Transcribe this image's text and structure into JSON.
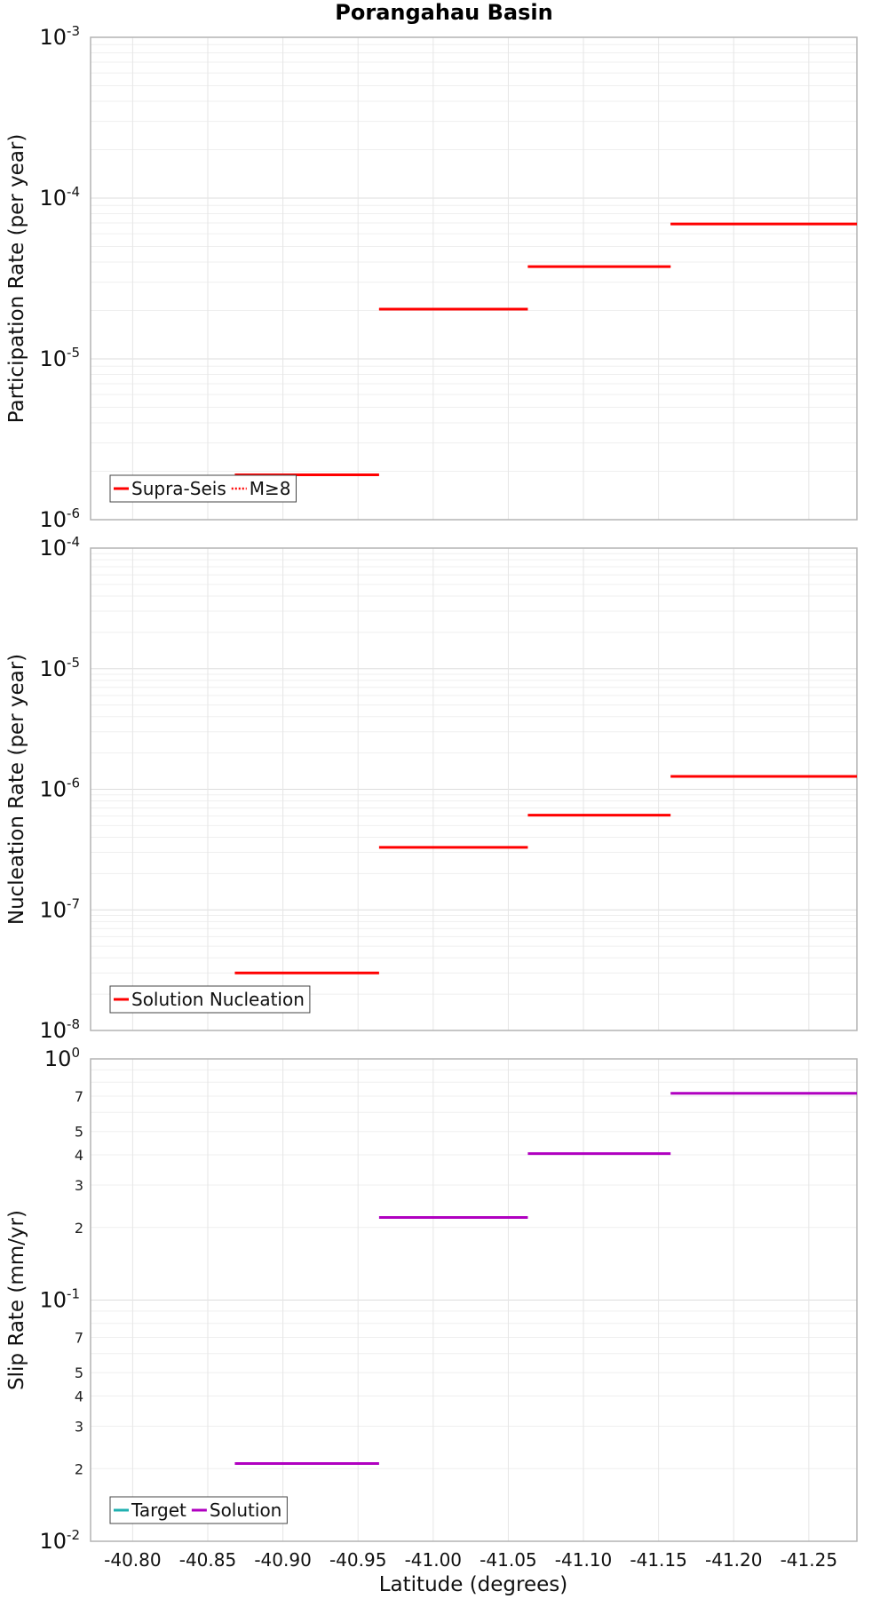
{
  "chart_data": {
    "title": "Porangahau Basin",
    "xlabel": "Latitude (degrees)",
    "xlim": [
      -40.772,
      -41.282
    ],
    "xticks": [
      {
        "value": -40.8,
        "label": "-40.80"
      },
      {
        "value": -40.85,
        "label": "-40.85"
      },
      {
        "value": -40.9,
        "label": "-40.90"
      },
      {
        "value": -40.95,
        "label": "-40.95"
      },
      {
        "value": -41.0,
        "label": "-41.00"
      },
      {
        "value": -41.05,
        "label": "-41.05"
      },
      {
        "value": -41.1,
        "label": "-41.10"
      },
      {
        "value": -41.15,
        "label": "-41.15"
      },
      {
        "value": -41.2,
        "label": "-41.20"
      },
      {
        "value": -41.25,
        "label": "-41.25"
      }
    ],
    "panels": [
      {
        "type": "line",
        "ylabel": "Participation Rate (per year)",
        "yscale": "log",
        "ylim_exp": [
          -6,
          -3
        ],
        "major_ticks": [
          {
            "base": "10",
            "exp": "-6",
            "value_exp": -6
          },
          {
            "base": "10",
            "exp": "-5",
            "value_exp": -5
          },
          {
            "base": "10",
            "exp": "-4",
            "value_exp": -4
          },
          {
            "base": "10",
            "exp": "-3",
            "value_exp": -3
          }
        ],
        "minor_ticks": [],
        "legend_position": "bottom-left",
        "legend": [
          {
            "label": "Supra-Seis",
            "color": "#ff0000",
            "style": "solid"
          },
          {
            "label": "M≥8",
            "color": "#ff0000",
            "style": "dotted"
          }
        ],
        "series": [
          {
            "name": "Supra-Seis",
            "color": "#ff0000",
            "style": "solid",
            "segments": [
              [
                -40.868,
                -40.964,
                1.9e-06
              ],
              [
                -40.964,
                -41.063,
                2.04e-05
              ],
              [
                -41.063,
                -41.158,
                3.75e-05
              ],
              [
                -41.158,
                -41.282,
                6.9e-05
              ]
            ]
          },
          {
            "name": "M≥8",
            "color": "#ff0000",
            "style": "dotted",
            "segments": [
              [
                -40.868,
                -40.964,
                1.9e-06
              ],
              [
                -40.964,
                -41.063,
                2.04e-05
              ],
              [
                -41.063,
                -41.158,
                3.75e-05
              ],
              [
                -41.158,
                -41.282,
                6.9e-05
              ]
            ]
          }
        ]
      },
      {
        "type": "line",
        "ylabel": "Nucleation Rate (per year)",
        "yscale": "log",
        "ylim_exp": [
          -8,
          -4
        ],
        "major_ticks": [
          {
            "base": "10",
            "exp": "-8",
            "value_exp": -8
          },
          {
            "base": "10",
            "exp": "-7",
            "value_exp": -7
          },
          {
            "base": "10",
            "exp": "-6",
            "value_exp": -6
          },
          {
            "base": "10",
            "exp": "-5",
            "value_exp": -5
          },
          {
            "base": "10",
            "exp": "-4",
            "value_exp": -4
          }
        ],
        "minor_ticks": [],
        "legend_position": "bottom-left",
        "legend": [
          {
            "label": "Solution Nucleation",
            "color": "#ff0000",
            "style": "solid"
          }
        ],
        "series": [
          {
            "name": "Solution Nucleation",
            "color": "#ff0000",
            "style": "solid",
            "segments": [
              [
                -40.868,
                -40.964,
                3e-08
              ],
              [
                -40.964,
                -41.063,
                3.3e-07
              ],
              [
                -41.063,
                -41.158,
                6.1e-07
              ],
              [
                -41.158,
                -41.282,
                1.28e-06
              ]
            ]
          }
        ]
      },
      {
        "type": "line",
        "ylabel": "Slip Rate (mm/yr)",
        "yscale": "log",
        "ylim_exp": [
          -2,
          0
        ],
        "major_ticks": [
          {
            "base": "10",
            "exp": "-2",
            "value_exp": -2
          },
          {
            "base": "10",
            "exp": "-1",
            "value_exp": -1
          },
          {
            "base": "10",
            "exp": "0",
            "value_exp": 0
          }
        ],
        "minor_ticks": [
          {
            "label": "2",
            "value": 0.02
          },
          {
            "label": "3",
            "value": 0.03
          },
          {
            "label": "4",
            "value": 0.04
          },
          {
            "label": "5",
            "value": 0.05
          },
          {
            "label": "7",
            "value": 0.07
          },
          {
            "label": "2",
            "value": 0.2
          },
          {
            "label": "3",
            "value": 0.3
          },
          {
            "label": "4",
            "value": 0.4
          },
          {
            "label": "5",
            "value": 0.5
          },
          {
            "label": "7",
            "value": 0.7
          }
        ],
        "legend_position": "bottom-left",
        "legend": [
          {
            "label": "Target",
            "color": "#20b0b0",
            "style": "solid"
          },
          {
            "label": "Solution",
            "color": "#b000c0",
            "style": "solid"
          }
        ],
        "series": [
          {
            "name": "Solution",
            "color": "#b000c0",
            "style": "solid",
            "segments": [
              [
                -40.868,
                -40.964,
                0.021
              ],
              [
                -40.964,
                -41.063,
                0.22
              ],
              [
                -41.063,
                -41.158,
                0.405
              ],
              [
                -41.158,
                -41.282,
                0.72
              ]
            ]
          }
        ]
      }
    ]
  }
}
